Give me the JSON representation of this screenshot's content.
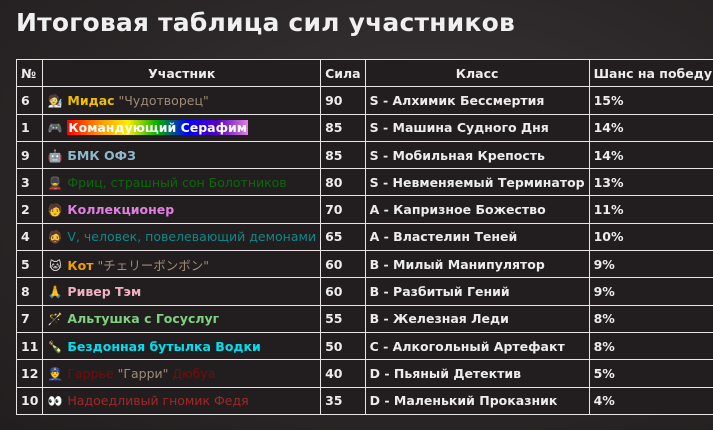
{
  "title": "Итоговая таблица сил участников",
  "headers": [
    "№",
    "Участник",
    "Сила",
    "Класс",
    "Шанс на победу"
  ],
  "rows": [
    {
      "num": "6",
      "icon": "🧑‍🔬",
      "icon_name": "scientist-icon",
      "name": [
        {
          "text": "Мидас",
          "color": "#f0c000",
          "bold": true
        },
        {
          "text": " \"Чудотворец\"",
          "color": "#a08a78",
          "bold": false
        }
      ],
      "power": "90",
      "class": "S - Алхимик Бессмертия",
      "chance": "15%"
    },
    {
      "num": "1",
      "icon": "🎮",
      "icon_name": "gamepad-icon",
      "name": [
        {
          "text": "Командующий Серафим",
          "color": "#ffffff",
          "bold": true,
          "rainbow": true
        }
      ],
      "power": "85",
      "class": "S - Машина Судного Дня",
      "chance": "14%"
    },
    {
      "num": "9",
      "icon": "🤖",
      "icon_name": "robot-icon",
      "name": [
        {
          "text": "БМК ОФЗ",
          "color": "#8fb8cc",
          "bold": true
        }
      ],
      "power": "85",
      "class": "S - Мобильная Крепость",
      "chance": "14%"
    },
    {
      "num": "3",
      "icon": "💂",
      "icon_name": "guard-icon",
      "name": [
        {
          "text": "Фриц, страшный сон Болотников",
          "color": "#0a6a0a",
          "bold": false
        }
      ],
      "power": "80",
      "class": "S - Невменяемый Терминатор",
      "chance": "13%"
    },
    {
      "num": "2",
      "icon": "🧑",
      "icon_name": "person-icon",
      "name": [
        {
          "text": "Коллекционер",
          "color": "#e080e0",
          "bold": true
        }
      ],
      "power": "70",
      "class": "A - Капризное Божество",
      "chance": "11%"
    },
    {
      "num": "4",
      "icon": "🧔",
      "icon_name": "bearded-man-icon",
      "name": [
        {
          "text": "V, человек, повелевающий демонами",
          "color": "#108888",
          "bold": false
        }
      ],
      "power": "65",
      "class": "A - Властелин Теней",
      "chance": "10%"
    },
    {
      "num": "5",
      "icon": "🐱",
      "icon_name": "cat-icon",
      "name": [
        {
          "text": "Кот",
          "color": "#f0a000",
          "bold": true
        },
        {
          "text": " \"チェリーボンボン\"",
          "color": "#a08a78",
          "bold": false
        }
      ],
      "power": "60",
      "class": "B - Милый Манипулятор",
      "chance": "9%"
    },
    {
      "num": "8",
      "icon": "🙏",
      "icon_name": "praying-hands-icon",
      "name": [
        {
          "text": "Ривер Тэм",
          "color": "#f0b0c0",
          "bold": true
        }
      ],
      "power": "60",
      "class": "B - Разбитый Гений",
      "chance": "9%"
    },
    {
      "num": "7",
      "icon": "🪄",
      "icon_name": "magic-wand-icon",
      "name": [
        {
          "text": "Альтушка с Госуслуг",
          "color": "#80d080",
          "bold": true
        }
      ],
      "power": "55",
      "class": "B - Железная Леди",
      "chance": "8%"
    },
    {
      "num": "11",
      "icon": "🍾",
      "icon_name": "bottle-icon",
      "name": [
        {
          "text": "Бездонная бутылка Водки",
          "color": "#00e0f0",
          "bold": true
        }
      ],
      "power": "50",
      "class": "C - Алкогольный Артефакт",
      "chance": "8%"
    },
    {
      "num": "12",
      "icon": "👮",
      "icon_name": "police-officer-icon",
      "name": [
        {
          "text": "Гаррье",
          "color": "#7a0a0a",
          "bold": false
        },
        {
          "text": " \"Гарри\" ",
          "color": "#a08a78",
          "bold": false
        },
        {
          "text": "Дюбуа",
          "color": "#7a0a0a",
          "bold": false
        }
      ],
      "power": "40",
      "class": "D - Пьяный Детектив",
      "chance": "5%"
    },
    {
      "num": "10",
      "icon": "👀",
      "icon_name": "eyes-icon",
      "name": [
        {
          "text": "Надоедливый гномик Федя",
          "color": "#a02828",
          "bold": false
        }
      ],
      "power": "35",
      "class": "D - Маленький Проказник",
      "chance": "4%"
    }
  ]
}
